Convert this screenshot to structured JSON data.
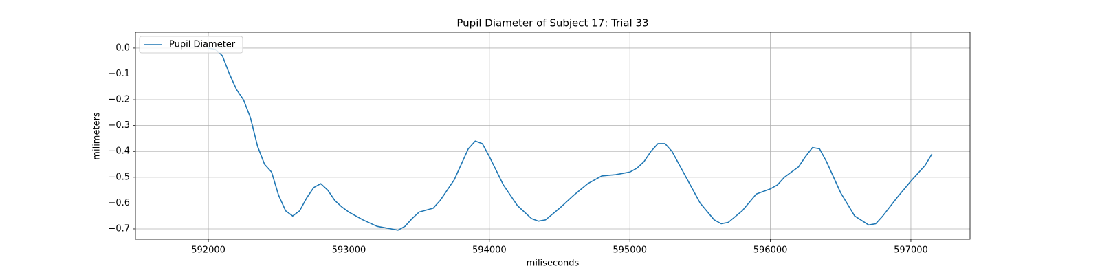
{
  "chart_data": {
    "type": "line",
    "title": "Pupil Diameter of Subject 17: Trial 33",
    "xlabel": "miliseconds",
    "ylabel": "milimeters",
    "x": [
      592000,
      592050,
      592100,
      592150,
      592200,
      592250,
      592300,
      592350,
      592400,
      592450,
      592500,
      592550,
      592600,
      592650,
      592700,
      592750,
      592800,
      592850,
      592900,
      592950,
      593000,
      593100,
      593200,
      593300,
      593350,
      593400,
      593450,
      593500,
      593600,
      593650,
      593700,
      593750,
      593800,
      593850,
      593900,
      593950,
      594000,
      594100,
      594200,
      594300,
      594350,
      594400,
      594500,
      594600,
      594700,
      594800,
      594900,
      595000,
      595050,
      595100,
      595150,
      595200,
      595250,
      595300,
      595400,
      595500,
      595600,
      595650,
      595700,
      595800,
      595900,
      596000,
      596050,
      596100,
      596200,
      596250,
      596300,
      596350,
      596400,
      596500,
      596600,
      596700,
      596750,
      596800,
      596900,
      597000,
      597100,
      597150
    ],
    "series": [
      {
        "name": "Pupil Diameter",
        "color": "#1f77b4",
        "values": [
          0.0,
          -0.005,
          -0.03,
          -0.1,
          -0.16,
          -0.2,
          -0.27,
          -0.38,
          -0.45,
          -0.48,
          -0.57,
          -0.63,
          -0.65,
          -0.63,
          -0.58,
          -0.54,
          -0.525,
          -0.55,
          -0.59,
          -0.615,
          -0.635,
          -0.665,
          -0.69,
          -0.7,
          -0.705,
          -0.69,
          -0.66,
          -0.635,
          -0.62,
          -0.59,
          -0.55,
          -0.51,
          -0.45,
          -0.39,
          -0.36,
          -0.37,
          -0.42,
          -0.53,
          -0.61,
          -0.66,
          -0.67,
          -0.665,
          -0.62,
          -0.57,
          -0.525,
          -0.495,
          -0.49,
          -0.48,
          -0.465,
          -0.44,
          -0.4,
          -0.37,
          -0.37,
          -0.4,
          -0.5,
          -0.6,
          -0.665,
          -0.68,
          -0.675,
          -0.63,
          -0.565,
          -0.545,
          -0.53,
          -0.5,
          -0.46,
          -0.42,
          -0.385,
          -0.39,
          -0.44,
          -0.56,
          -0.65,
          -0.685,
          -0.68,
          -0.65,
          -0.58,
          -0.515,
          -0.455,
          -0.41
        ]
      }
    ],
    "xlim": [
      591481,
      597421
    ],
    "xticks": [
      592000,
      593000,
      594000,
      595000,
      596000,
      597000
    ],
    "ylim": [
      -0.74,
      0.061
    ],
    "yticks": [
      {
        "value": 0.0,
        "label": "0.0"
      },
      {
        "value": -0.1,
        "label": "−0.1"
      },
      {
        "value": -0.2,
        "label": "−0.2"
      },
      {
        "value": -0.3,
        "label": "−0.3"
      },
      {
        "value": -0.4,
        "label": "−0.4"
      },
      {
        "value": -0.5,
        "label": "−0.5"
      },
      {
        "value": -0.6,
        "label": "−0.6"
      },
      {
        "value": -0.7,
        "label": "−0.7"
      }
    ],
    "grid": true,
    "legend": "upper left"
  }
}
